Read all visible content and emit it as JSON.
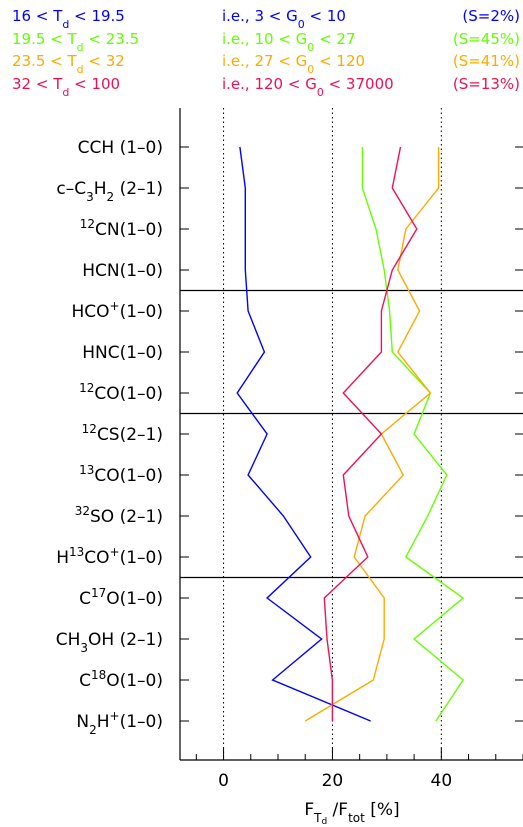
{
  "chart_data": {
    "type": "line",
    "orientation": "horizontal",
    "xlabel": "F_Td / F_tot [%]",
    "xlim": [
      -8,
      55
    ],
    "xticks": [
      0,
      20,
      40
    ],
    "reference_lines": [
      0,
      20,
      40
    ],
    "groups_separated_after": [
      "HCN(1-0)",
      "12CO(1-0)",
      "H13CO+(1-0)"
    ],
    "categories": [
      "CCH (1-0)",
      "c-C3H2 (2-1)",
      "12CN(1-0)",
      "HCN(1-0)",
      "HCO+(1-0)",
      "HNC(1-0)",
      "12CO(1-0)",
      "12CS(2-1)",
      "13CO(1-0)",
      "32SO (2-1)",
      "H13CO+(1-0)",
      "C17O(1-0)",
      "CH3OH (2-1)",
      "C18O(1-0)",
      "N2H+(1-0)"
    ],
    "series": [
      {
        "range_td": "16 < T_d < 19.5",
        "range_g0": "i.e., 3 < G_0 < 10",
        "share": "(S=2%)",
        "color": "#0000ff",
        "values": [
          3,
          4,
          4,
          4,
          4.5,
          7.5,
          2.5,
          8,
          4.5,
          11,
          16,
          8,
          18,
          9,
          27
        ]
      },
      {
        "range_td": "19.5 < T_d < 23.5",
        "range_g0": "i.e., 10 < G_0 < 27",
        "share": "(S=45%)",
        "color": "#66ff00",
        "values": [
          25.5,
          25.5,
          28,
          29.5,
          30.5,
          31,
          38,
          35,
          41,
          37.5,
          33.5,
          44,
          35,
          44,
          39
        ]
      },
      {
        "range_td": "23.5 < T_d < 32",
        "range_g0": "i.e., 27 < G_0 < 120",
        "share": "(S=41%)",
        "color": "#ffaa00",
        "values": [
          39.5,
          39.5,
          33.5,
          32,
          36,
          32,
          38,
          29,
          33,
          26,
          24,
          29.5,
          29.5,
          27.5,
          15
        ]
      },
      {
        "range_td": "32 < T_d < 100",
        "range_g0": "i.e., 120 < G_0 < 37000",
        "share": "(S=13%)",
        "color": "#ee1155",
        "values": [
          32.5,
          31,
          35.5,
          31,
          29,
          29,
          22,
          29,
          22,
          23,
          26.5,
          18.5,
          19,
          20,
          20
        ]
      }
    ]
  },
  "labels": {
    "cch": {
      "main": "CCH (1–0)"
    },
    "c3h2": {
      "a": "c–C",
      "b": "3",
      "c": "H",
      "d": "2",
      "e": " (2–1)"
    },
    "cn": {
      "sup": "12",
      "main": "CN(1–0)"
    },
    "hcn": {
      "main": "HCN(1–0)"
    },
    "hcop": {
      "main": "HCO",
      "sup": "+",
      "tail": "(1–0)"
    },
    "hnc": {
      "main": "HNC(1–0)"
    },
    "co12": {
      "sup": "12",
      "main": "CO(1–0)"
    },
    "cs": {
      "sup": "12",
      "main": "CS(2–1)"
    },
    "co13": {
      "sup": "13",
      "main": "CO(1–0)"
    },
    "so": {
      "sup": "32",
      "main": "SO (2–1)"
    },
    "h13cop": {
      "a": "H",
      "sup1": "13",
      "b": "CO",
      "sup2": "+",
      "c": "(1–0)"
    },
    "c17o": {
      "a": "C",
      "sup": "17",
      "b": "O(1–0)"
    },
    "ch3oh": {
      "a": "CH",
      "sub": "3",
      "b": "OH (2–1)"
    },
    "c18o": {
      "a": "C",
      "sup": "18",
      "b": "O(1–0)"
    },
    "n2hp": {
      "a": "N",
      "sub": "2",
      "b": "H",
      "sup": "+",
      "c": "(1–0)"
    }
  },
  "legend": [
    {
      "td": "16 < T",
      "tdsub": "d",
      "tdend": " < 19.5",
      "g0": "i.e., 3 < G",
      "g0sub": "0",
      "g0end": " < 10",
      "share": "(S=2%)"
    },
    {
      "td": "19.5 < T",
      "tdsub": "d",
      "tdend": " < 23.5",
      "g0": "i.e., 10 < G",
      "g0sub": "0",
      "g0end": " < 27",
      "share": "(S=45%)"
    },
    {
      "td": "23.5 < T",
      "tdsub": "d",
      "tdend": " < 32",
      "g0": "i.e., 27 < G",
      "g0sub": "0",
      "g0end": " < 120",
      "share": "(S=41%)"
    },
    {
      "td": "32 < T",
      "tdsub": "d",
      "tdend": " < 100",
      "g0": "i.e., 120 < G",
      "g0sub": "0",
      "g0end": " < 37000",
      "share": "(S=13%)"
    }
  ],
  "xaxis_label": {
    "f": "F",
    "t": "T",
    "d": "d",
    "mid": " /F",
    "tot": "tot",
    "unit": " [%]"
  },
  "tick_labels": [
    "0",
    "20",
    "40"
  ]
}
